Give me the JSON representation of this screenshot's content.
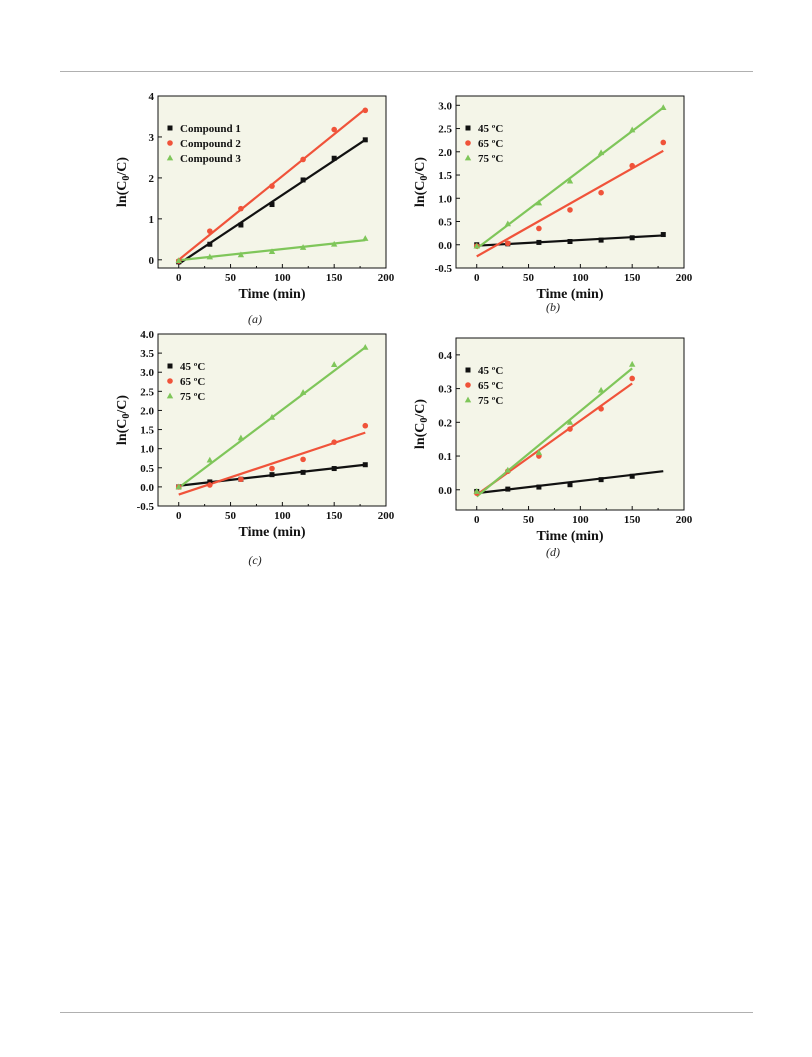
{
  "figure": {
    "captions": [
      "(a)",
      "(b)",
      "(c)",
      "(d)"
    ]
  },
  "colors": {
    "series": [
      "#111111",
      "#f0533a",
      "#7fc65a"
    ],
    "plot_bg": "#f4f5e8"
  },
  "chart_data": [
    {
      "type": "scatter",
      "xlabel": "Time (min)",
      "ylabel": "ln(C0/C)",
      "xlim": [
        -20,
        200
      ],
      "ylim": [
        -0.2,
        4
      ],
      "xticks": [
        0,
        50,
        100,
        150,
        200
      ],
      "yticks": [
        0,
        1,
        2,
        3,
        4
      ],
      "ytick_labels": [
        "0",
        "1",
        "2",
        "3",
        "4"
      ],
      "legend_position": "top-left",
      "series": [
        {
          "name": "Compound 1",
          "marker": "square",
          "x": [
            0,
            30,
            60,
            90,
            120,
            150,
            180
          ],
          "y": [
            -0.05,
            0.38,
            0.85,
            1.35,
            1.95,
            2.48,
            2.93
          ],
          "fit": [
            [
              0,
              -0.1
            ],
            [
              180,
              2.93
            ]
          ]
        },
        {
          "name": "Compound 2",
          "marker": "circle",
          "x": [
            0,
            30,
            60,
            90,
            120,
            150,
            180
          ],
          "y": [
            -0.03,
            0.7,
            1.25,
            1.8,
            2.45,
            3.18,
            3.65
          ],
          "fit": [
            [
              0,
              0.0
            ],
            [
              180,
              3.68
            ]
          ]
        },
        {
          "name": "Compound 3",
          "marker": "triangle",
          "x": [
            0,
            30,
            60,
            90,
            120,
            150,
            180
          ],
          "y": [
            -0.02,
            0.07,
            0.12,
            0.2,
            0.3,
            0.38,
            0.52
          ],
          "fit": [
            [
              0,
              -0.01
            ],
            [
              180,
              0.48
            ]
          ]
        }
      ]
    },
    {
      "type": "scatter",
      "xlabel": "Time (min)",
      "ylabel": "ln(C0/C)",
      "xlim": [
        -20,
        200
      ],
      "ylim": [
        -0.5,
        3.2
      ],
      "xticks": [
        0,
        50,
        100,
        150,
        200
      ],
      "yticks": [
        -0.5,
        0.0,
        0.5,
        1.0,
        1.5,
        2.0,
        2.5,
        3.0
      ],
      "ytick_labels": [
        "-0.5",
        "0.0",
        "0.5",
        "1.0",
        "1.5",
        "2.0",
        "2.5",
        "3.0"
      ],
      "legend_position": "top-left",
      "series": [
        {
          "name": "45 ºC",
          "marker": "square",
          "x": [
            0,
            30,
            60,
            90,
            120,
            150,
            180
          ],
          "y": [
            0.0,
            0.02,
            0.05,
            0.07,
            0.1,
            0.15,
            0.22
          ],
          "fit": [
            [
              0,
              -0.02
            ],
            [
              180,
              0.2
            ]
          ]
        },
        {
          "name": "65 ºC",
          "marker": "circle",
          "x": [
            0,
            30,
            60,
            90,
            120,
            150,
            180
          ],
          "y": [
            -0.03,
            0.03,
            0.35,
            0.75,
            1.12,
            1.7,
            2.2
          ],
          "fit": [
            [
              0,
              -0.25
            ],
            [
              180,
              2.02
            ]
          ]
        },
        {
          "name": "75 ºC",
          "marker": "triangle",
          "x": [
            0,
            30,
            60,
            90,
            120,
            150,
            180
          ],
          "y": [
            -0.03,
            0.45,
            0.9,
            1.37,
            1.98,
            2.47,
            2.95
          ],
          "fit": [
            [
              0,
              -0.08
            ],
            [
              180,
              2.95
            ]
          ]
        }
      ]
    },
    {
      "type": "scatter",
      "xlabel": "Time (min)",
      "ylabel": "ln(C0/C)",
      "xlim": [
        -20,
        200
      ],
      "ylim": [
        -0.5,
        4.0
      ],
      "xticks": [
        0,
        50,
        100,
        150,
        200
      ],
      "yticks": [
        -0.5,
        0.0,
        0.5,
        1.0,
        1.5,
        2.0,
        2.5,
        3.0,
        3.5,
        4.0
      ],
      "ytick_labels": [
        "-0.5",
        "0.0",
        "0.5",
        "1.0",
        "1.5",
        "2.0",
        "2.5",
        "3.0",
        "3.5",
        "4.0"
      ],
      "legend_position": "top-left",
      "series": [
        {
          "name": "45 ºC",
          "marker": "square",
          "x": [
            0,
            30,
            60,
            90,
            120,
            150,
            180
          ],
          "y": [
            0.0,
            0.13,
            0.2,
            0.32,
            0.38,
            0.48,
            0.58
          ],
          "fit": [
            [
              0,
              0.03
            ],
            [
              180,
              0.58
            ]
          ]
        },
        {
          "name": "65 ºC",
          "marker": "circle",
          "x": [
            0,
            30,
            60,
            90,
            120,
            150,
            180
          ],
          "y": [
            0.0,
            0.05,
            0.2,
            0.48,
            0.72,
            1.17,
            1.6
          ],
          "fit": [
            [
              0,
              -0.2
            ],
            [
              180,
              1.42
            ]
          ]
        },
        {
          "name": "75 ºC",
          "marker": "triangle",
          "x": [
            0,
            30,
            60,
            90,
            120,
            150,
            180
          ],
          "y": [
            0.0,
            0.7,
            1.28,
            1.82,
            2.47,
            3.2,
            3.65
          ],
          "fit": [
            [
              0,
              -0.02
            ],
            [
              180,
              3.65
            ]
          ]
        }
      ]
    },
    {
      "type": "scatter",
      "xlabel": "Time (min)",
      "ylabel": "ln(C0/C)",
      "xlim": [
        -20,
        200
      ],
      "ylim": [
        -0.06,
        0.45
      ],
      "xticks": [
        0,
        50,
        100,
        150,
        200
      ],
      "yticks": [
        0.0,
        0.1,
        0.2,
        0.3,
        0.4
      ],
      "ytick_labels": [
        "0.0",
        "0.1",
        "0.2",
        "0.3",
        "0.4"
      ],
      "legend_position": "top-left",
      "series": [
        {
          "name": "45 ºC",
          "marker": "square",
          "x": [
            0,
            30,
            60,
            90,
            120,
            150
          ],
          "y": [
            -0.005,
            0.002,
            0.008,
            0.015,
            0.03,
            0.04
          ],
          "fit": [
            [
              0,
              -0.01
            ],
            [
              180,
              0.055
            ]
          ]
        },
        {
          "name": "65 ºC",
          "marker": "circle",
          "x": [
            0,
            30,
            60,
            90,
            120,
            150
          ],
          "y": [
            -0.01,
            0.055,
            0.1,
            0.18,
            0.24,
            0.33
          ],
          "fit": [
            [
              0,
              -0.015
            ],
            [
              150,
              0.315
            ]
          ]
        },
        {
          "name": "75 ºC",
          "marker": "triangle",
          "x": [
            0,
            30,
            60,
            90,
            120,
            150
          ],
          "y": [
            -0.005,
            0.058,
            0.11,
            0.2,
            0.295,
            0.372
          ],
          "fit": [
            [
              0,
              -0.02
            ],
            [
              150,
              0.36
            ]
          ]
        }
      ]
    }
  ]
}
